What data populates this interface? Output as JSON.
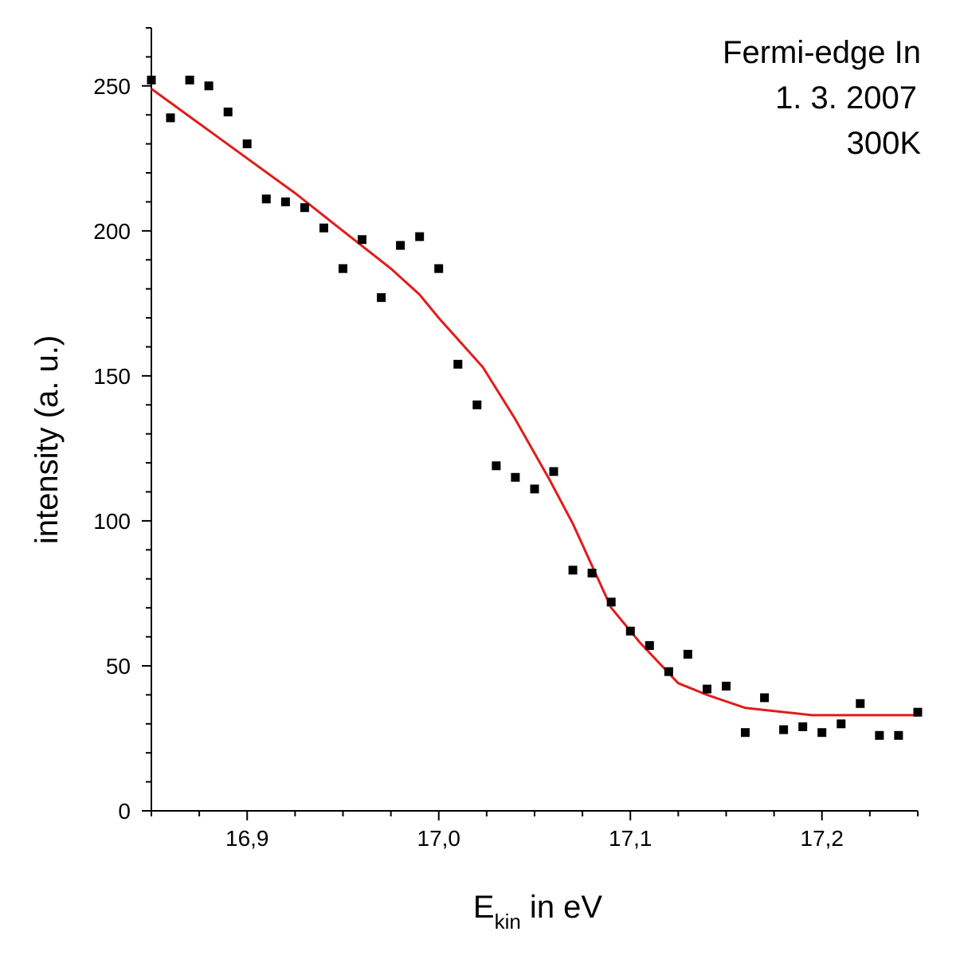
{
  "chart_data": {
    "type": "scatter",
    "xlabel_main": "E",
    "xlabel_sub": "kin",
    "xlabel_rest": " in eV",
    "ylabel": "intensity (a. u.)",
    "xlim": [
      16.85,
      17.25
    ],
    "ylim": [
      0,
      270
    ],
    "x_ticks": [
      {
        "value": 16.9,
        "label": "16,9"
      },
      {
        "value": 17.0,
        "label": "17,0"
      },
      {
        "value": 17.1,
        "label": "17,1"
      },
      {
        "value": 17.2,
        "label": "17,2"
      }
    ],
    "y_ticks": [
      {
        "value": 0,
        "label": "0"
      },
      {
        "value": 50,
        "label": "50"
      },
      {
        "value": 100,
        "label": "100"
      },
      {
        "value": 150,
        "label": "150"
      },
      {
        "value": 200,
        "label": "200"
      },
      {
        "value": 250,
        "label": "250"
      }
    ],
    "annotations": [
      "Fermi-edge In",
      "1. 3. 2007",
      "300K"
    ],
    "colors": {
      "points": "#000000",
      "fit": "#e31b1b",
      "axes": "#000000"
    },
    "series": [
      {
        "type": "scatter",
        "points": [
          [
            16.85,
            252
          ],
          [
            16.86,
            239
          ],
          [
            16.87,
            252
          ],
          [
            16.88,
            250
          ],
          [
            16.89,
            241
          ],
          [
            16.9,
            230
          ],
          [
            16.91,
            211
          ],
          [
            16.92,
            210
          ],
          [
            16.93,
            208
          ],
          [
            16.94,
            201
          ],
          [
            16.95,
            187
          ],
          [
            16.96,
            197
          ],
          [
            16.97,
            177
          ],
          [
            16.98,
            195
          ],
          [
            16.99,
            198
          ],
          [
            17.0,
            187
          ],
          [
            17.01,
            154
          ],
          [
            17.02,
            140
          ],
          [
            17.03,
            119
          ],
          [
            17.04,
            115
          ],
          [
            17.05,
            111
          ],
          [
            17.06,
            117
          ],
          [
            17.07,
            83
          ],
          [
            17.08,
            82
          ],
          [
            17.09,
            72
          ],
          [
            17.1,
            62
          ],
          [
            17.11,
            57
          ],
          [
            17.12,
            48
          ],
          [
            17.13,
            54
          ],
          [
            17.14,
            42
          ],
          [
            17.15,
            43
          ],
          [
            17.16,
            27
          ],
          [
            17.17,
            39
          ],
          [
            17.18,
            28
          ],
          [
            17.19,
            29
          ],
          [
            17.2,
            27
          ],
          [
            17.21,
            30
          ],
          [
            17.22,
            37
          ],
          [
            17.23,
            26
          ],
          [
            17.24,
            26
          ],
          [
            17.25,
            34
          ]
        ]
      },
      {
        "type": "line",
        "points": [
          [
            16.85,
            249
          ],
          [
            16.875,
            237
          ],
          [
            16.9,
            225
          ],
          [
            16.925,
            213
          ],
          [
            16.95,
            200
          ],
          [
            16.975,
            187
          ],
          [
            16.99,
            178
          ],
          [
            17.0,
            170
          ],
          [
            17.023,
            153
          ],
          [
            17.04,
            135
          ],
          [
            17.058,
            114
          ],
          [
            17.07,
            99
          ],
          [
            17.09,
            70
          ],
          [
            17.105,
            58
          ],
          [
            17.125,
            44
          ],
          [
            17.14,
            40
          ],
          [
            17.16,
            35.5
          ],
          [
            17.195,
            33
          ],
          [
            17.25,
            33
          ]
        ]
      }
    ]
  }
}
